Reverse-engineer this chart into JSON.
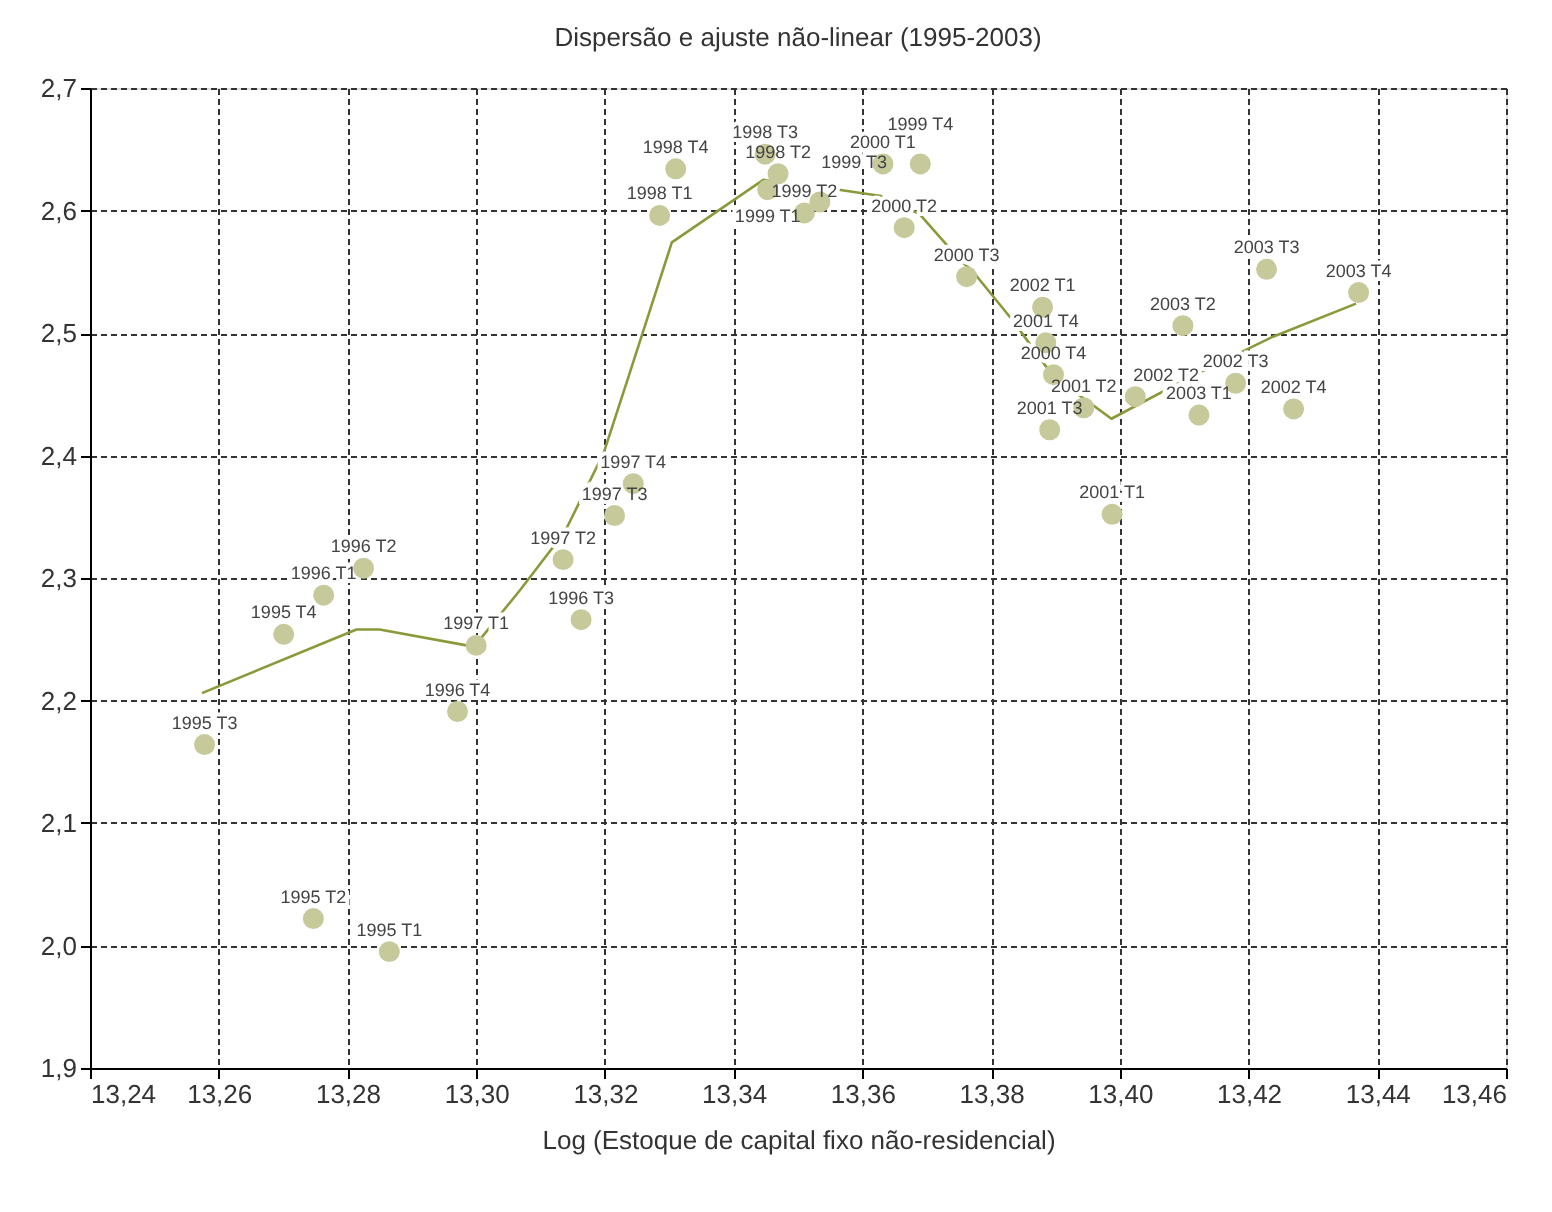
{
  "chart_data": {
    "type": "scatter",
    "title": "Dispersão e ajuste não-linear (1995-2003)",
    "xlabel": "Log (Estoque de capital fixo não-residencial)",
    "xlim": [
      13.24,
      13.46
    ],
    "ylim": [
      1.9,
      2.7
    ],
    "xticks": [
      {
        "value": 13.24,
        "label": "13,24"
      },
      {
        "value": 13.26,
        "label": "13,26"
      },
      {
        "value": 13.28,
        "label": "13,28"
      },
      {
        "value": 13.3,
        "label": "13,30"
      },
      {
        "value": 13.32,
        "label": "13,32"
      },
      {
        "value": 13.34,
        "label": "13,34"
      },
      {
        "value": 13.36,
        "label": "13,36"
      },
      {
        "value": 13.38,
        "label": "13,38"
      },
      {
        "value": 13.4,
        "label": "13,40"
      },
      {
        "value": 13.42,
        "label": "13,42"
      },
      {
        "value": 13.44,
        "label": "13,44"
      },
      {
        "value": 13.46,
        "label": "13,46"
      }
    ],
    "yticks": [
      {
        "value": 1.9,
        "label": "1,9"
      },
      {
        "value": 2.0,
        "label": "2,0"
      },
      {
        "value": 2.1,
        "label": "2,1"
      },
      {
        "value": 2.2,
        "label": "2,2"
      },
      {
        "value": 2.3,
        "label": "2,3"
      },
      {
        "value": 2.4,
        "label": "2,4"
      },
      {
        "value": 2.5,
        "label": "2,5"
      },
      {
        "value": 2.6,
        "label": "2,6"
      },
      {
        "value": 2.7,
        "label": "2,7"
      }
    ],
    "grid": true,
    "legend": false,
    "marker": "circle",
    "series": [
      {
        "type": "scatter",
        "color": "#c6c99a",
        "x": [
          13.2865,
          13.2747,
          13.2578,
          13.2701,
          13.2763,
          13.2825,
          13.3163,
          13.2971,
          13.3,
          13.3135,
          13.3215,
          13.3244,
          13.3285,
          13.331,
          13.3449,
          13.3469,
          13.3453,
          13.351,
          13.3534,
          13.3632,
          13.369,
          13.3665,
          13.3762,
          13.388,
          13.3885,
          13.3897,
          13.3944,
          13.3891,
          13.3988,
          13.4024,
          13.4098,
          13.4123,
          13.418,
          13.427,
          13.4228,
          13.4371
        ],
        "values": [
          1.995,
          2.022,
          2.164,
          2.254,
          2.286,
          2.308,
          2.266,
          2.191,
          2.245,
          2.315,
          2.351,
          2.377,
          2.596,
          2.634,
          2.646,
          2.63,
          2.617,
          2.598,
          2.607,
          2.638,
          2.638,
          2.586,
          2.546,
          2.521,
          2.492,
          2.466,
          2.439,
          2.421,
          2.352,
          2.448,
          2.506,
          2.433,
          2.459,
          2.438,
          2.552,
          2.533
        ]
      },
      {
        "type": "line",
        "color": "#8a9a3a",
        "line_style": "solid",
        "marker": "none",
        "x": [
          13.2574,
          13.2814,
          13.285,
          13.2985,
          13.3,
          13.3068,
          13.3138,
          13.3198,
          13.3239,
          13.3304,
          13.3446,
          13.3523,
          13.3627,
          13.3689,
          13.3751,
          13.3772,
          13.3834,
          13.3896,
          13.3987,
          13.4113,
          13.4238,
          13.4367
        ],
        "values": [
          2.206,
          2.258,
          2.258,
          2.245,
          2.246,
          2.29,
          2.338,
          2.402,
          2.468,
          2.574,
          2.625,
          2.62,
          2.612,
          2.597,
          2.56,
          2.55,
          2.51,
          2.465,
          2.43,
          2.465,
          2.497,
          2.524
        ]
      }
    ],
    "annotations": [
      {
        "text": "1995 T1",
        "x": 13.2865,
        "y": 1.995
      },
      {
        "text": "1995 T2",
        "x": 13.2747,
        "y": 2.022
      },
      {
        "text": "1995 T3",
        "x": 13.2578,
        "y": 2.164
      },
      {
        "text": "1995 T4",
        "x": 13.2701,
        "y": 2.254
      },
      {
        "text": "1996 T1",
        "x": 13.2763,
        "y": 2.286
      },
      {
        "text": "1996 T2",
        "x": 13.2825,
        "y": 2.308
      },
      {
        "text": "1996 T3",
        "x": 13.3163,
        "y": 2.266
      },
      {
        "text": "1996 T4",
        "x": 13.2971,
        "y": 2.191
      },
      {
        "text": "1997 T1",
        "x": 13.3,
        "y": 2.245
      },
      {
        "text": "1997 T2",
        "x": 13.3135,
        "y": 2.315
      },
      {
        "text": "1997 T3",
        "x": 13.3215,
        "y": 2.351
      },
      {
        "text": "1997 T4",
        "x": 13.3244,
        "y": 2.377
      },
      {
        "text": "1998 T1",
        "x": 13.3285,
        "y": 2.596
      },
      {
        "text": "1998 T4",
        "x": 13.331,
        "y": 2.634
      },
      {
        "text": "1998 T3",
        "x": 13.3449,
        "y": 2.646
      },
      {
        "text": "1998 T2",
        "x": 13.3469,
        "y": 2.63
      },
      {
        "text": "1999 T1",
        "x": 13.3453,
        "y": 2.617
      },
      {
        "text": "1999 T2",
        "x": 13.351,
        "y": 2.598
      },
      {
        "text": "1999 T3",
        "x": 13.3534,
        "y": 2.607
      },
      {
        "text": "2000 T1",
        "x": 13.3632,
        "y": 2.638
      },
      {
        "text": "1999 T4",
        "x": 13.369,
        "y": 2.638
      },
      {
        "text": "2000 T2",
        "x": 13.3665,
        "y": 2.586
      },
      {
        "text": "2000 T3",
        "x": 13.3762,
        "y": 2.546
      },
      {
        "text": "2002 T1",
        "x": 13.388,
        "y": 2.521
      },
      {
        "text": "2001 T4",
        "x": 13.3885,
        "y": 2.492
      },
      {
        "text": "2000 T4",
        "x": 13.3897,
        "y": 2.466
      },
      {
        "text": "2001 T2",
        "x": 13.3944,
        "y": 2.439
      },
      {
        "text": "2001 T3",
        "x": 13.3891,
        "y": 2.421
      },
      {
        "text": "2001 T1",
        "x": 13.3988,
        "y": 2.352
      },
      {
        "text": "2002 T2",
        "x": 13.4024,
        "y": 2.448
      },
      {
        "text": "2003 T2",
        "x": 13.4098,
        "y": 2.506
      },
      {
        "text": "2003 T1",
        "x": 13.4123,
        "y": 2.433
      },
      {
        "text": "2002 T3",
        "x": 13.418,
        "y": 2.459
      },
      {
        "text": "2002 T4",
        "x": 13.427,
        "y": 2.438
      },
      {
        "text": "2003 T3",
        "x": 13.4228,
        "y": 2.552
      },
      {
        "text": "2003 T4",
        "x": 13.4371,
        "y": 2.533
      }
    ]
  }
}
